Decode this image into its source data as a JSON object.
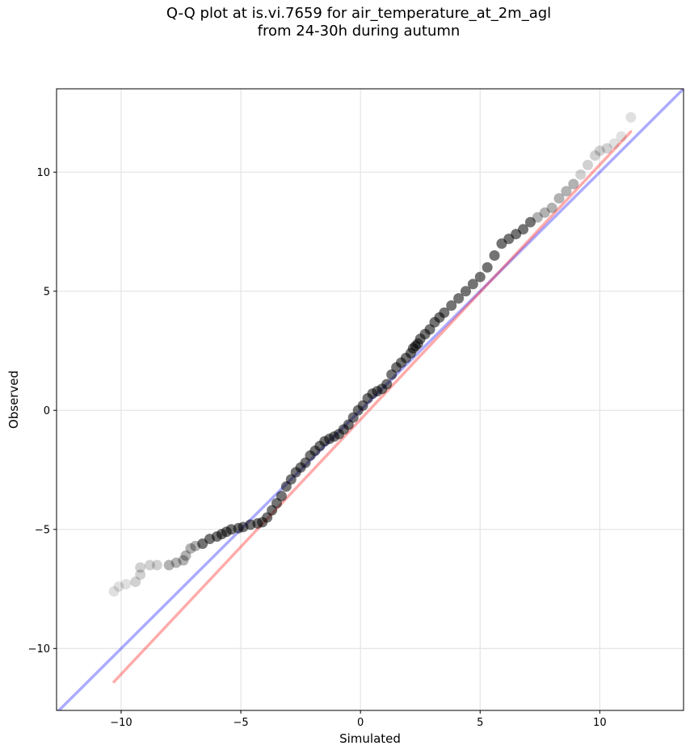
{
  "chart_data": {
    "type": "scatter",
    "title": "Q-Q plot at is.vi.7659 for air_temperature_at_2m_agl",
    "subtitle": "from 24-30h during autumn",
    "xlabel": "Simulated",
    "ylabel": "Observed",
    "xlim": [
      -12.7,
      13.5
    ],
    "ylim": [
      -12.6,
      13.5
    ],
    "xticks": [
      -10,
      -5,
      0,
      5,
      10
    ],
    "yticks": [
      -10,
      -5,
      0,
      5,
      10
    ],
    "xtick_labels": [
      "−10",
      "−5",
      "0",
      "5",
      "10"
    ],
    "ytick_labels": [
      "−10",
      "−5",
      "0",
      "5",
      "10"
    ],
    "grid": true,
    "colors": {
      "points": "#000000",
      "identity_line": "#0000ff",
      "fit_line": "#ff0000"
    },
    "identity_line": {
      "x": [
        -12.7,
        13.5
      ],
      "y": [
        -12.7,
        13.5
      ]
    },
    "fit_line": {
      "x": [
        -10.3,
        11.3
      ],
      "y": [
        -11.4,
        11.7
      ]
    },
    "points": {
      "x": [
        -10.3,
        -10.1,
        -9.8,
        -9.4,
        -9.2,
        -9.2,
        -8.8,
        -8.5,
        -8.0,
        -7.7,
        -7.4,
        -7.3,
        -7.1,
        -6.9,
        -6.6,
        -6.3,
        -6.0,
        -5.8,
        -5.6,
        -5.4,
        -5.1,
        -4.9,
        -4.6,
        -4.3,
        -4.1,
        -3.9,
        -3.7,
        -3.5,
        -3.3,
        -3.1,
        -2.9,
        -2.7,
        -2.5,
        -2.3,
        -2.1,
        -1.9,
        -1.7,
        -1.5,
        -1.3,
        -1.1,
        -0.9,
        -0.7,
        -0.5,
        -0.3,
        -0.1,
        0.1,
        0.3,
        0.5,
        0.7,
        0.9,
        1.1,
        1.3,
        1.5,
        1.7,
        1.9,
        2.1,
        2.2,
        2.3,
        2.4,
        2.5,
        2.7,
        2.9,
        3.1,
        3.3,
        3.5,
        3.8,
        4.1,
        4.4,
        4.7,
        5.0,
        5.3,
        5.6,
        5.9,
        6.2,
        6.5,
        6.8,
        7.1,
        7.4,
        7.7,
        8.0,
        8.3,
        8.6,
        8.9,
        9.2,
        9.5,
        9.8,
        10.0,
        10.3,
        10.6,
        10.9,
        11.3
      ],
      "y": [
        -7.6,
        -7.4,
        -7.3,
        -7.2,
        -6.9,
        -6.6,
        -6.5,
        -6.5,
        -6.5,
        -6.4,
        -6.3,
        -6.1,
        -5.8,
        -5.7,
        -5.6,
        -5.4,
        -5.3,
        -5.2,
        -5.1,
        -5.0,
        -4.95,
        -4.9,
        -4.8,
        -4.75,
        -4.7,
        -4.5,
        -4.2,
        -3.9,
        -3.6,
        -3.2,
        -2.9,
        -2.6,
        -2.4,
        -2.2,
        -1.9,
        -1.7,
        -1.5,
        -1.3,
        -1.2,
        -1.1,
        -1.0,
        -0.8,
        -0.6,
        -0.3,
        0.0,
        0.2,
        0.5,
        0.7,
        0.8,
        0.9,
        1.1,
        1.5,
        1.8,
        2.0,
        2.2,
        2.4,
        2.6,
        2.7,
        2.8,
        3.0,
        3.2,
        3.4,
        3.7,
        3.9,
        4.1,
        4.4,
        4.7,
        5.0,
        5.3,
        5.6,
        6.0,
        6.5,
        7.0,
        7.2,
        7.4,
        7.6,
        7.9,
        8.1,
        8.3,
        8.5,
        8.9,
        9.2,
        9.5,
        9.9,
        10.3,
        10.7,
        10.9,
        11.0,
        11.2,
        11.5,
        12.3
      ]
    }
  }
}
